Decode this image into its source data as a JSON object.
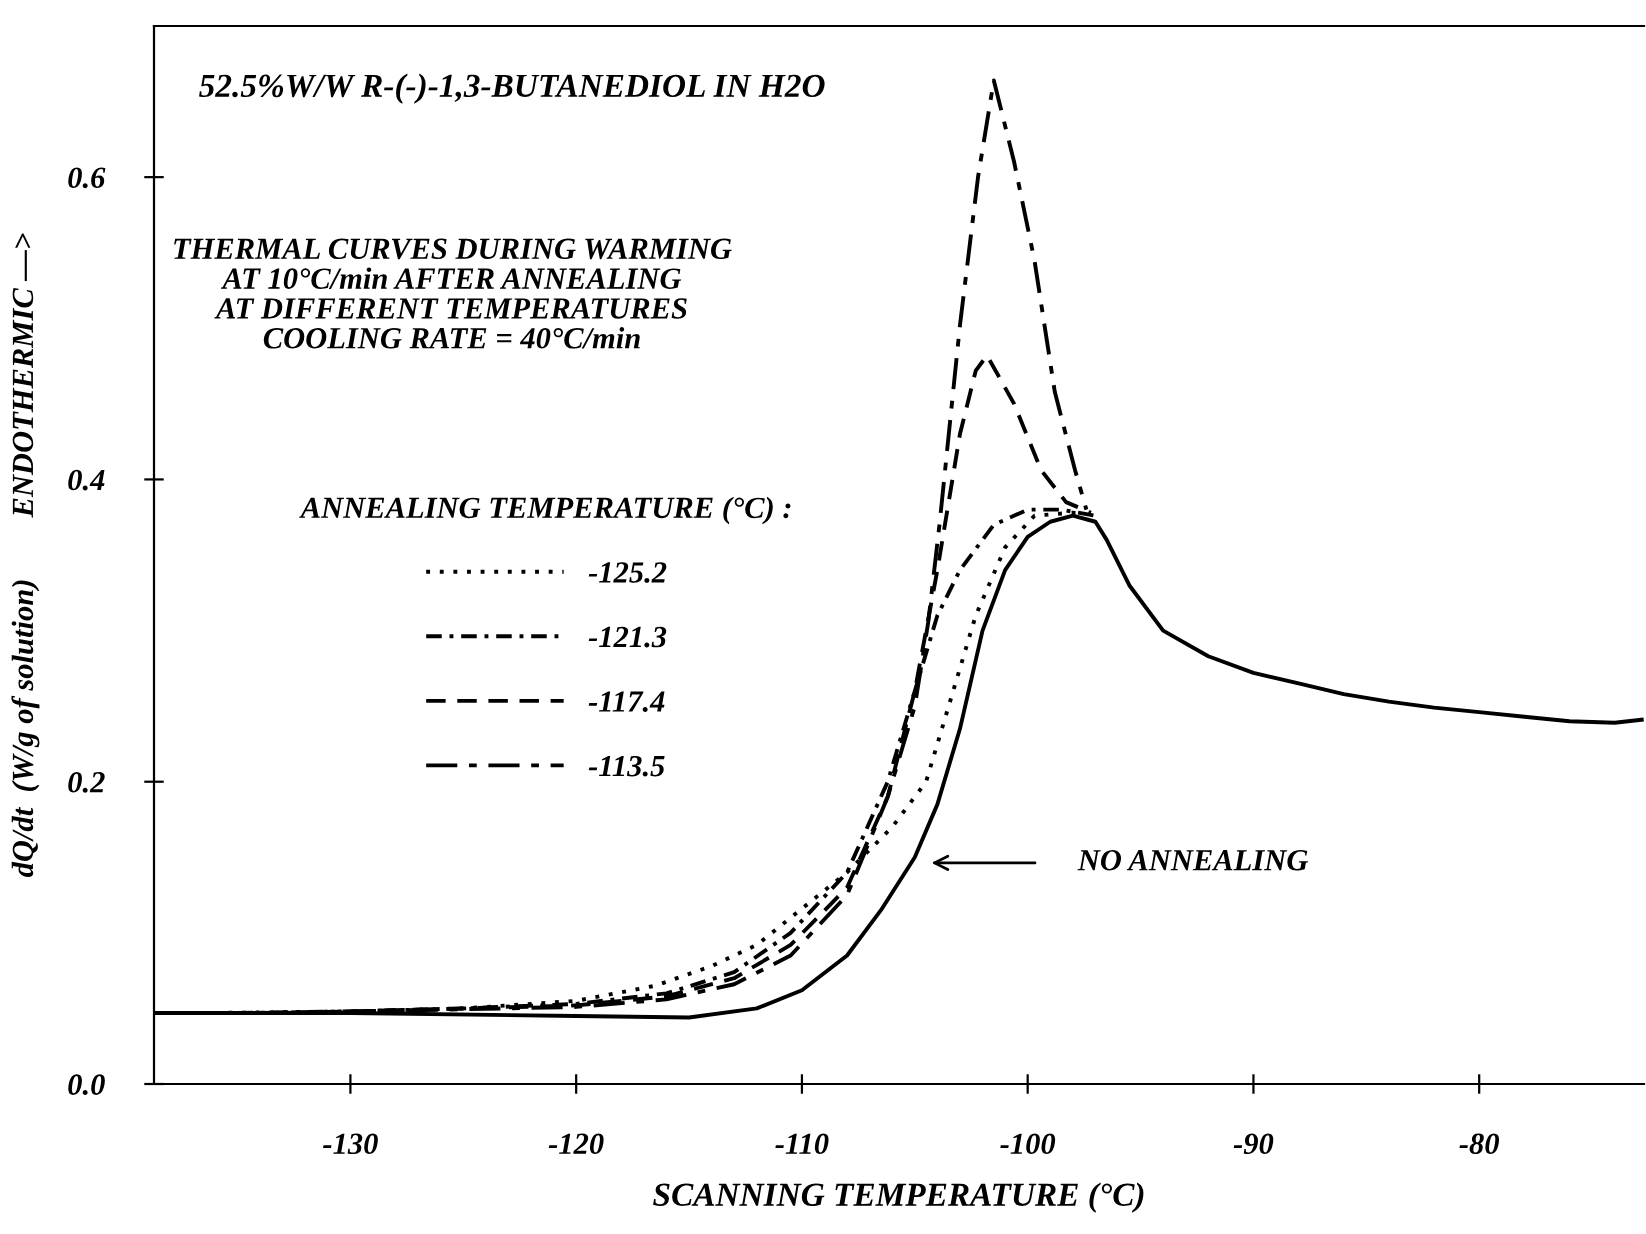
{
  "chart_data": {
    "type": "line",
    "title": "52.5%W/W R-(-)-1,3-BUTANEDIOL IN H2O",
    "subtitle": "THERMAL CURVES DURING WARMING\nAT 10°C/min AFTER ANNEALING\nAT DIFFERENT TEMPERATURES\nCOOLING RATE = 40°C/min",
    "xlabel": "SCANNING TEMPERATURE (°C)",
    "ylabel": "dQ/dt  (W/g of solution)        ENDOTHERMIC —>",
    "legend_title": "ANNEALING TEMPERATURE (°C) :",
    "xlim": [
      -138.7,
      -72.7
    ],
    "ylim": [
      0,
      0.7
    ],
    "xticks": [
      -130,
      -120,
      -110,
      -100,
      -90,
      -80
    ],
    "yticks": [
      {
        "value": 0,
        "label": "0.0"
      },
      {
        "value": 0.2,
        "label": "0.2"
      },
      {
        "value": 0.4,
        "label": "0.4"
      },
      {
        "value": 0.6,
        "label": "0.6"
      }
    ],
    "grid": false,
    "legend": "left",
    "annotations": [
      "NO ANNEALING"
    ],
    "series": [
      {
        "color": "#000000",
        "line_style": "solid",
        "x": [
          -138.7,
          -130,
          -120,
          -115,
          -112,
          -110,
          -108,
          -106.5,
          -105,
          -104,
          -103,
          -102,
          -101,
          -100,
          -99,
          -98,
          -97,
          -96.5,
          -95.5,
          -94,
          -92,
          -90,
          -88,
          -86,
          -84,
          -82,
          -80,
          -78,
          -76,
          -74,
          -72.8
        ],
        "values": [
          0.047,
          0.047,
          0.045,
          0.044,
          0.05,
          0.062,
          0.085,
          0.115,
          0.15,
          0.185,
          0.235,
          0.3,
          0.34,
          0.362,
          0.372,
          0.376,
          0.372,
          0.36,
          0.33,
          0.3,
          0.283,
          0.272,
          0.265,
          0.258,
          0.253,
          0.249,
          0.246,
          0.243,
          0.24,
          0.239,
          0.241
        ]
      },
      {
        "name": "-125.2",
        "color": "#000000",
        "line_style": "dotted",
        "x": [
          -136,
          -130,
          -125,
          -120,
          -116.5,
          -114,
          -112,
          -110.5,
          -108,
          -106,
          -104.5,
          -103.5,
          -102.3,
          -101,
          -99.7,
          -98,
          -97.6
        ],
        "values": [
          0.047,
          0.048,
          0.05,
          0.055,
          0.065,
          0.078,
          0.092,
          0.11,
          0.14,
          0.17,
          0.2,
          0.25,
          0.31,
          0.355,
          0.376,
          0.378,
          0.377
        ]
      },
      {
        "name": "-121.3",
        "color": "#000000",
        "line_style": "dashdot",
        "x": [
          -135,
          -130,
          -125,
          -120,
          -116,
          -113,
          -110.5,
          -108,
          -106.2,
          -105,
          -104,
          -103,
          -101.5,
          -100,
          -98.5,
          -97
        ],
        "values": [
          0.047,
          0.048,
          0.05,
          0.053,
          0.06,
          0.074,
          0.1,
          0.14,
          0.2,
          0.26,
          0.31,
          0.34,
          0.37,
          0.38,
          0.38,
          0.376
        ]
      },
      {
        "name": "-117.4",
        "color": "#000000",
        "line_style": "dashed",
        "x": [
          -134,
          -130,
          -120,
          -116,
          -113,
          -110.5,
          -108,
          -106.2,
          -105,
          -104,
          -103,
          -102.3,
          -101.8,
          -100.6,
          -99.4,
          -98.3,
          -97.2
        ],
        "values": [
          0.047,
          0.048,
          0.052,
          0.058,
          0.07,
          0.092,
          0.13,
          0.19,
          0.26,
          0.34,
          0.43,
          0.472,
          0.482,
          0.45,
          0.406,
          0.385,
          0.378
        ]
      },
      {
        "name": "-113.5",
        "color": "#000000",
        "line_style": "longdashdot",
        "x": [
          -133,
          -130,
          -120,
          -116,
          -113,
          -110.5,
          -108,
          -106.2,
          -105,
          -104.4,
          -103.9,
          -103,
          -102.2,
          -101.5,
          -100.6,
          -99.7,
          -98.8,
          -97.9,
          -97.4
        ],
        "values": [
          0.047,
          0.048,
          0.051,
          0.056,
          0.066,
          0.085,
          0.125,
          0.19,
          0.25,
          0.306,
          0.371,
          0.502,
          0.6,
          0.664,
          0.61,
          0.545,
          0.458,
          0.406,
          0.38
        ]
      }
    ]
  }
}
